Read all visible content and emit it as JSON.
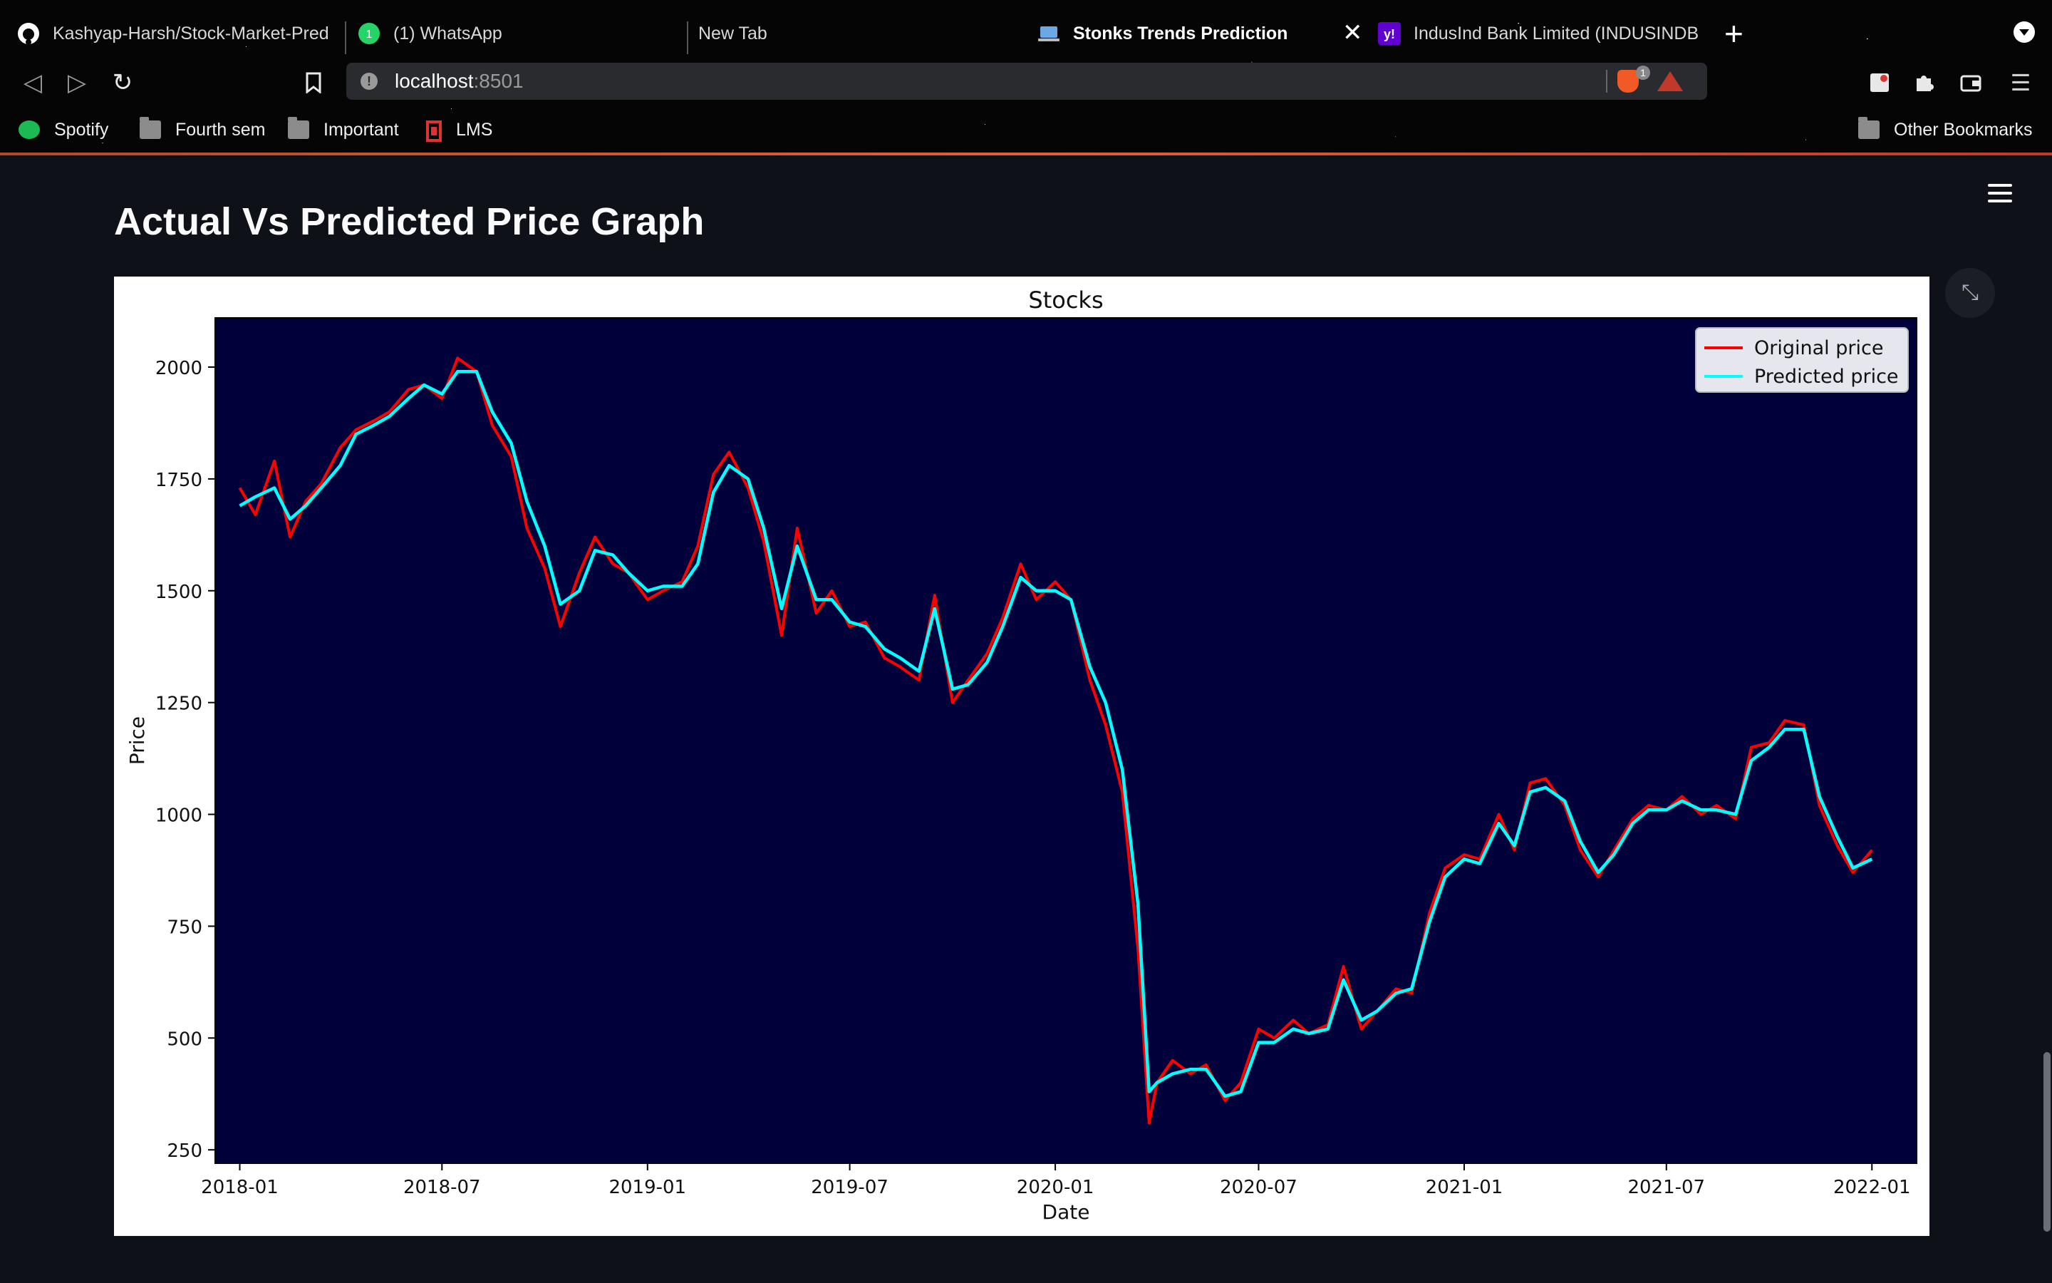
{
  "browser": {
    "tabs": [
      {
        "label": "Kashyap-Harsh/Stock-Market-Pred",
        "icon": "github-icon",
        "active": false
      },
      {
        "label": "(1) WhatsApp",
        "icon": "whatsapp-icon",
        "active": false
      },
      {
        "label": "New Tab",
        "icon": "",
        "active": false
      },
      {
        "label": "Stonks Trends Prediction",
        "icon": "laptop-icon",
        "active": true
      },
      {
        "label": "IndusInd Bank Limited (INDUSINDB",
        "icon": "yahoo-icon",
        "active": false
      }
    ],
    "url": {
      "host": "localhost",
      "port": ":8501"
    },
    "shields_count": "1",
    "bookmarks": [
      {
        "label": "Spotify",
        "icon": "spotify-icon"
      },
      {
        "label": "Fourth sem",
        "icon": "folder-icon"
      },
      {
        "label": "Important",
        "icon": "folder-icon"
      },
      {
        "label": "LMS",
        "icon": "lms-icon"
      },
      {
        "label": "Other Bookmarks",
        "icon": "folder-icon"
      }
    ]
  },
  "app": {
    "heading": "Actual Vs Predicted Price Graph"
  },
  "chart_data": {
    "type": "line",
    "title": "Stocks",
    "xlabel": "Date",
    "ylabel": "Price",
    "ylim": [
      220,
      2110
    ],
    "xlim": [
      "2017-12-10",
      "2022-02-10"
    ],
    "yticks": [
      250,
      500,
      750,
      1000,
      1250,
      1500,
      1750,
      2000
    ],
    "xticks": [
      "2018-01",
      "2018-07",
      "2019-01",
      "2019-07",
      "2020-01",
      "2020-07",
      "2021-01",
      "2021-07",
      "2022-01"
    ],
    "legend": "top-right",
    "background": "#00003a",
    "grid": false,
    "x": [
      "2018-01-01",
      "2018-01-15",
      "2018-02-01",
      "2018-02-15",
      "2018-03-01",
      "2018-03-15",
      "2018-04-01",
      "2018-04-15",
      "2018-05-01",
      "2018-05-15",
      "2018-06-01",
      "2018-06-15",
      "2018-07-01",
      "2018-07-15",
      "2018-08-01",
      "2018-08-15",
      "2018-09-01",
      "2018-09-15",
      "2018-10-01",
      "2018-10-15",
      "2018-11-01",
      "2018-11-15",
      "2018-12-01",
      "2018-12-15",
      "2019-01-01",
      "2019-01-15",
      "2019-02-01",
      "2019-02-15",
      "2019-03-01",
      "2019-03-15",
      "2019-04-01",
      "2019-04-15",
      "2019-05-01",
      "2019-05-15",
      "2019-06-01",
      "2019-06-15",
      "2019-07-01",
      "2019-07-15",
      "2019-08-01",
      "2019-08-15",
      "2019-09-01",
      "2019-09-15",
      "2019-10-01",
      "2019-10-15",
      "2019-11-01",
      "2019-11-15",
      "2019-12-01",
      "2019-12-15",
      "2020-01-01",
      "2020-01-15",
      "2020-02-01",
      "2020-02-15",
      "2020-03-01",
      "2020-03-15",
      "2020-03-25",
      "2020-04-01",
      "2020-04-15",
      "2020-05-01",
      "2020-05-15",
      "2020-06-01",
      "2020-06-15",
      "2020-07-01",
      "2020-07-15",
      "2020-08-01",
      "2020-08-15",
      "2020-09-01",
      "2020-09-15",
      "2020-10-01",
      "2020-10-15",
      "2020-11-01",
      "2020-11-15",
      "2020-12-01",
      "2020-12-15",
      "2021-01-01",
      "2021-01-15",
      "2021-02-01",
      "2021-02-15",
      "2021-03-01",
      "2021-03-15",
      "2021-04-01",
      "2021-04-15",
      "2021-05-01",
      "2021-05-15",
      "2021-06-01",
      "2021-06-15",
      "2021-07-01",
      "2021-07-15",
      "2021-08-01",
      "2021-08-15",
      "2021-09-01",
      "2021-09-15",
      "2021-10-01",
      "2021-10-15",
      "2021-11-01",
      "2021-11-15",
      "2021-12-01",
      "2021-12-15",
      "2022-01-01"
    ],
    "series": [
      {
        "name": "Original price",
        "color": "#ff0000",
        "values": [
          1730,
          1670,
          1790,
          1620,
          1700,
          1740,
          1820,
          1860,
          1880,
          1900,
          1950,
          1960,
          1930,
          2020,
          1990,
          1870,
          1800,
          1640,
          1550,
          1420,
          1540,
          1620,
          1560,
          1540,
          1480,
          1500,
          1520,
          1600,
          1760,
          1810,
          1730,
          1610,
          1400,
          1640,
          1450,
          1500,
          1420,
          1430,
          1350,
          1330,
          1300,
          1490,
          1250,
          1300,
          1360,
          1440,
          1560,
          1480,
          1520,
          1480,
          1300,
          1200,
          1050,
          700,
          310,
          400,
          450,
          420,
          440,
          360,
          400,
          520,
          500,
          540,
          510,
          530,
          660,
          520,
          560,
          610,
          600,
          780,
          880,
          910,
          900,
          1000,
          920,
          1070,
          1080,
          1020,
          920,
          860,
          920,
          990,
          1020,
          1010,
          1040,
          1000,
          1020,
          990,
          1150,
          1160,
          1210,
          1200,
          1020,
          930,
          870,
          920
        ]
      },
      {
        "name": "Predicted price",
        "color": "#00ffff",
        "values": [
          1690,
          1710,
          1730,
          1660,
          1690,
          1730,
          1780,
          1850,
          1870,
          1890,
          1930,
          1960,
          1940,
          1990,
          1990,
          1900,
          1830,
          1700,
          1600,
          1470,
          1500,
          1590,
          1580,
          1540,
          1500,
          1510,
          1510,
          1560,
          1720,
          1780,
          1750,
          1640,
          1460,
          1600,
          1480,
          1480,
          1430,
          1420,
          1370,
          1350,
          1320,
          1460,
          1280,
          1290,
          1340,
          1420,
          1530,
          1500,
          1500,
          1480,
          1330,
          1250,
          1100,
          800,
          380,
          400,
          420,
          430,
          430,
          370,
          380,
          490,
          490,
          520,
          510,
          520,
          630,
          540,
          560,
          600,
          610,
          760,
          860,
          900,
          890,
          980,
          930,
          1050,
          1060,
          1030,
          940,
          870,
          910,
          980,
          1010,
          1010,
          1030,
          1010,
          1010,
          1000,
          1120,
          1150,
          1190,
          1190,
          1040,
          950,
          880,
          900
        ]
      }
    ]
  }
}
